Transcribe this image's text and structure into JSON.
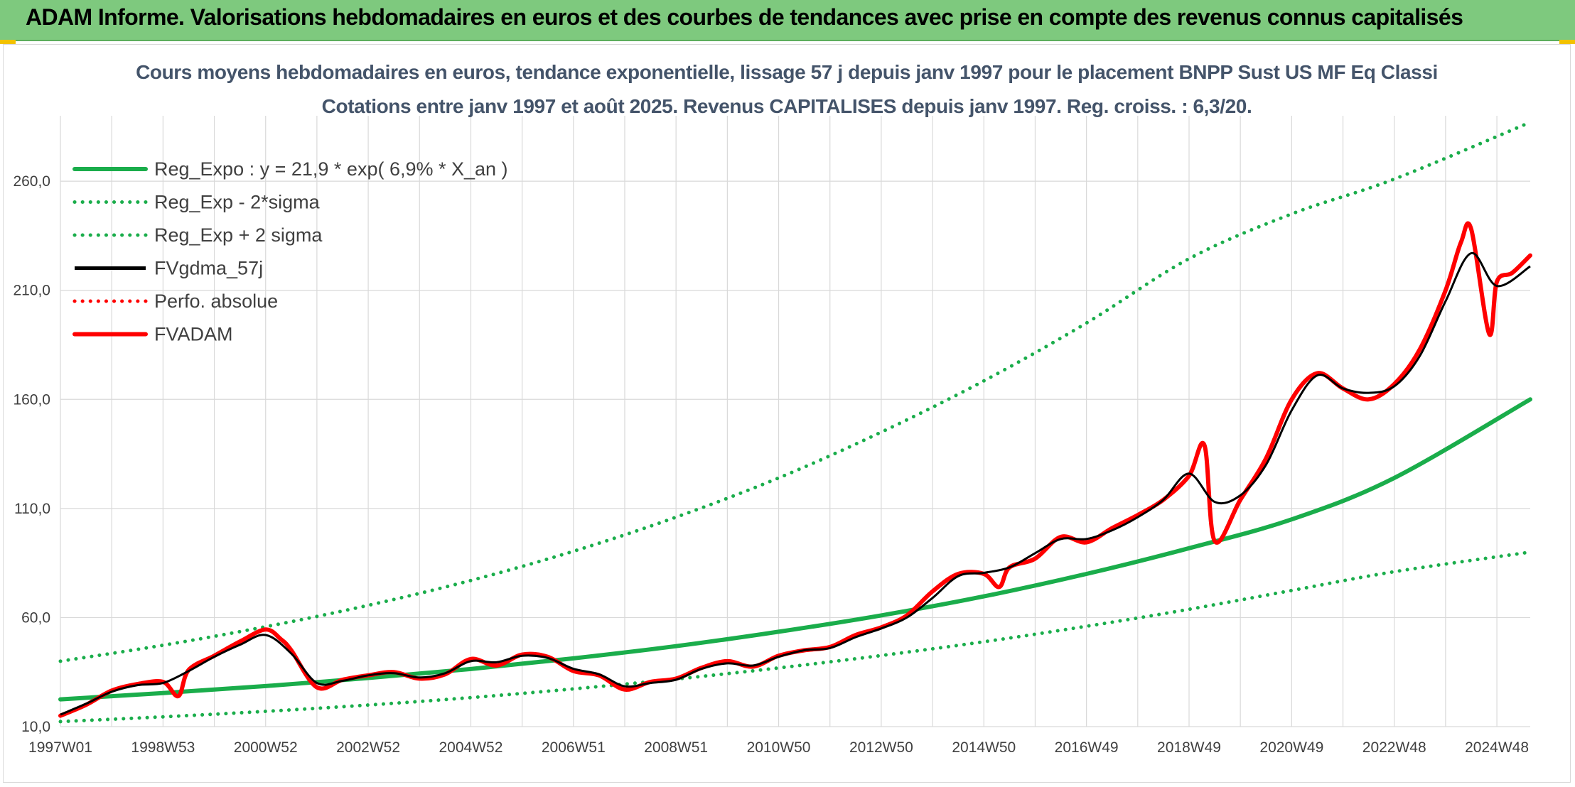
{
  "header": {
    "title": "ADAM Informe. Valorisations hebdomadaires en euros et des courbes de tendances avec prise en compte des revenus connus capitalisés"
  },
  "colors": {
    "header_bg": "#7ec97e",
    "reg_expo": "#1aad4b",
    "fvgdma": "#000000",
    "fvadam": "#ff0000",
    "perfo": "#ff0000",
    "grid": "#d9d9d9",
    "title": "#44546a"
  },
  "chart_data": {
    "type": "line",
    "title": "Cours moyens hebdomadaires en euros, tendance exponentielle, lissage 57 j depuis janv 1997 pour le placement BNPP Sust US MF Eq Classi",
    "subtitle": "Cotations entre janv 1997 et août 2025. Revenus CAPITALISES depuis janv 1997. Reg. croiss. : 6,3/20.",
    "xlabel": "",
    "ylabel": "",
    "ylim": [
      10,
      290
    ],
    "yticks": [
      10,
      60,
      110,
      160,
      210,
      260
    ],
    "ytick_labels": [
      "10,0",
      "60,0",
      "110,0",
      "160,0",
      "210,0",
      "260,0"
    ],
    "xlim": [
      1997.0,
      2025.65
    ],
    "xticks": [
      1997.0,
      1999.0,
      2001.0,
      2003.0,
      2005.0,
      2007.0,
      2009.0,
      2011.0,
      2013.0,
      2015.0,
      2017.0,
      2019.0,
      2021.0,
      2023.0,
      2025.0
    ],
    "xtick_labels": [
      "1997W01",
      "1998W53",
      "2000W52",
      "2002W52",
      "2004W52",
      "2006W51",
      "2008W51",
      "2010W50",
      "2012W50",
      "2014W50",
      "2016W49",
      "2018W49",
      "2020W49",
      "2022W48",
      "2024W48"
    ],
    "grid": true,
    "legend_position": "top-left",
    "legend": [
      {
        "label": "Reg_Expo : y = 21,9 * exp( 6,9% *  X_an )",
        "style": "solid-thick",
        "color": "#1aad4b"
      },
      {
        "label": "Reg_Exp - 2*sigma",
        "style": "dotted",
        "color": "#1aad4b"
      },
      {
        "label": "Reg_Exp + 2 sigma",
        "style": "dotted",
        "color": "#1aad4b"
      },
      {
        "label": "FVgdma_57j",
        "style": "solid",
        "color": "#000000"
      },
      {
        "label": "Perfo. absolue",
        "style": "dotted",
        "color": "#ff0000"
      },
      {
        "label": "FVADAM",
        "style": "solid-thick",
        "color": "#ff0000"
      }
    ],
    "series": [
      {
        "name": "Reg_Expo : y = 21,9 * exp( 6,9% *  X_an )",
        "style": "solid-thick",
        "x": [
          1997.0,
          1999.0,
          2001.0,
          2003.0,
          2005.0,
          2007.0,
          2009.0,
          2011.0,
          2013.0,
          2015.0,
          2017.0,
          2019.0,
          2021.0,
          2023.0,
          2025.65
        ],
        "y": [
          22.5,
          25.4,
          28.6,
          32.3,
          36.4,
          41.3,
          46.9,
          53.5,
          61.0,
          69.7,
          80.0,
          91.8,
          105.0,
          124.0,
          160.0
        ]
      },
      {
        "name": "Reg_Exp - 2*sigma",
        "style": "dotted",
        "x": [
          1997.0,
          1999.0,
          2001.0,
          2003.0,
          2005.0,
          2007.0,
          2009.0,
          2011.0,
          2013.0,
          2015.0,
          2017.0,
          2019.0,
          2021.0,
          2023.0,
          2025.65
        ],
        "y": [
          12.3,
          14.5,
          17.0,
          19.9,
          23.3,
          27.3,
          31.8,
          36.9,
          42.6,
          48.9,
          56.0,
          63.8,
          72.4,
          81.0,
          90.0
        ]
      },
      {
        "name": "Reg_Exp + 2 sigma",
        "style": "dotted",
        "x": [
          1997.0,
          1999.0,
          2001.0,
          2003.0,
          2005.0,
          2007.0,
          2009.0,
          2011.0,
          2013.0,
          2015.0,
          2017.0,
          2019.0,
          2021.0,
          2023.0,
          2025.65
        ],
        "y": [
          40.0,
          47.3,
          55.8,
          65.6,
          77.0,
          90.4,
          106.0,
          124.0,
          145.0,
          168.5,
          195.0,
          224.5,
          245.0,
          261.0,
          287.0
        ]
      },
      {
        "name": "FVgdma_57j",
        "style": "solid",
        "x": [
          1997.0,
          1997.5,
          1998.0,
          1998.5,
          1999.0,
          1999.5,
          2000.0,
          2000.5,
          2001.0,
          2001.5,
          2002.0,
          2002.5,
          2003.0,
          2003.5,
          2004.0,
          2004.5,
          2005.0,
          2005.5,
          2006.0,
          2006.5,
          2007.0,
          2007.5,
          2008.0,
          2008.5,
          2009.0,
          2009.5,
          2010.0,
          2010.5,
          2011.0,
          2011.5,
          2012.0,
          2012.5,
          2013.0,
          2013.5,
          2014.0,
          2014.5,
          2015.0,
          2015.5,
          2016.0,
          2016.5,
          2017.0,
          2017.5,
          2018.0,
          2018.5,
          2019.0,
          2019.5,
          2020.0,
          2020.5,
          2021.0,
          2021.5,
          2022.0,
          2022.5,
          2023.0,
          2023.5,
          2024.0,
          2024.5,
          2025.0,
          2025.65
        ],
        "y": [
          15.5,
          20.5,
          26.0,
          29.0,
          30.0,
          35.5,
          42.0,
          47.5,
          52.0,
          43.5,
          30.0,
          31.0,
          33.5,
          34.5,
          32.5,
          34.5,
          40.0,
          39.5,
          42.5,
          41.5,
          36.5,
          34.0,
          28.5,
          30.0,
          31.5,
          36.5,
          39.0,
          38.0,
          42.0,
          45.0,
          46.0,
          51.0,
          55.0,
          60.0,
          69.0,
          79.0,
          80.5,
          83.0,
          89.5,
          96.0,
          96.0,
          100.0,
          106.0,
          114.0,
          126.0,
          113.0,
          116.0,
          130.0,
          155.0,
          171.0,
          165.0,
          163.0,
          166.0,
          180.0,
          205.0,
          227.0,
          212.0,
          221.0
        ]
      },
      {
        "name": "FVADAM",
        "style": "solid-thick",
        "x": [
          1997.0,
          1997.5,
          1998.0,
          1998.5,
          1999.0,
          1999.3,
          1999.5,
          2000.0,
          2000.5,
          2001.0,
          2001.3,
          2001.5,
          2002.0,
          2002.5,
          2003.0,
          2003.5,
          2004.0,
          2004.5,
          2005.0,
          2005.5,
          2006.0,
          2006.5,
          2007.0,
          2007.5,
          2008.0,
          2008.5,
          2009.0,
          2009.5,
          2010.0,
          2010.5,
          2011.0,
          2011.5,
          2012.0,
          2012.5,
          2013.0,
          2013.5,
          2014.0,
          2014.5,
          2015.0,
          2015.3,
          2015.5,
          2016.0,
          2016.5,
          2017.0,
          2017.5,
          2018.0,
          2018.5,
          2019.0,
          2019.3,
          2019.5,
          2020.0,
          2020.5,
          2021.0,
          2021.5,
          2022.0,
          2022.5,
          2023.0,
          2023.5,
          2024.0,
          2024.3,
          2024.5,
          2024.85,
          2025.0,
          2025.3,
          2025.65
        ],
        "y": [
          15.0,
          20.0,
          26.5,
          29.5,
          30.5,
          24.0,
          36.0,
          42.5,
          49.0,
          54.5,
          50.0,
          45.0,
          28.0,
          31.5,
          33.5,
          35.0,
          32.0,
          34.0,
          41.0,
          38.0,
          43.0,
          42.0,
          35.5,
          33.5,
          27.0,
          30.5,
          32.0,
          37.0,
          40.0,
          37.5,
          42.5,
          45.0,
          46.5,
          52.0,
          55.5,
          61.0,
          72.0,
          80.0,
          80.0,
          74.0,
          83.0,
          87.0,
          97.0,
          94.5,
          101.0,
          107.0,
          114.0,
          125.0,
          139.0,
          95.0,
          114.0,
          133.0,
          160.0,
          172.0,
          165.0,
          160.0,
          167.0,
          183.0,
          210.0,
          232.0,
          238.0,
          190.0,
          214.0,
          218.0,
          226.0
        ]
      }
    ]
  }
}
